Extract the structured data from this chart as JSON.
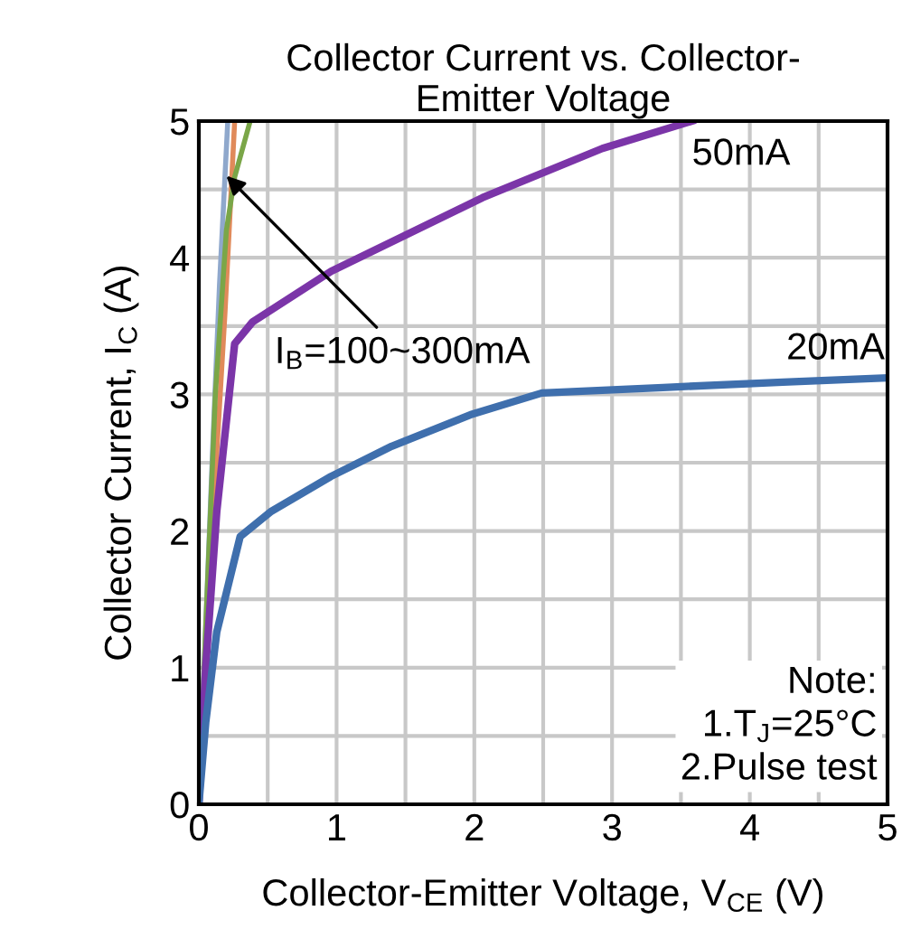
{
  "chart_data": {
    "type": "line",
    "title": "Collector Current vs. Collector-\nEmitter Voltage",
    "xlabel": "Collector-Emitter Voltage, V$_{CE}$ (V)",
    "ylabel": "Collector Current, I$_{C}$ (A)",
    "xlim": [
      0,
      5
    ],
    "ylim": [
      0,
      5
    ],
    "xticks": [
      0,
      {
        "value": 0.5,
        "label": null
      },
      1,
      {
        "value": 1.5,
        "label": null
      },
      2,
      {
        "value": 2.5,
        "label": null
      },
      3,
      {
        "value": 3.5,
        "label": null
      },
      4,
      {
        "value": 4.5,
        "label": null
      },
      5
    ],
    "yticks": [
      0,
      {
        "value": 0.5,
        "label": null
      },
      1,
      {
        "value": 1.5,
        "label": null
      },
      2,
      {
        "value": 2.5,
        "label": null
      },
      3,
      {
        "value": 3.5,
        "label": null
      },
      4,
      {
        "value": 4.5,
        "label": null
      },
      5
    ],
    "grid": true,
    "legend": false,
    "marker": "none",
    "line_style": "solid",
    "series": [
      {
        "color": "#8fa8cc",
        "x": [
          0,
          0.05,
          0.1,
          0.15,
          0.21
        ],
        "values": [
          0,
          1.3,
          2.6,
          3.8,
          5
        ]
      },
      {
        "color": "#e08a5a",
        "x": [
          0,
          0.06,
          0.12,
          0.19,
          0.26
        ],
        "values": [
          0,
          1.2,
          2.4,
          3.6,
          5
        ]
      },
      {
        "color": "#7aa648",
        "x": [
          0,
          0.05,
          0.12,
          0.2,
          0.26,
          0.37
        ],
        "values": [
          0,
          1.3,
          3.0,
          4.2,
          4.59,
          4.99
        ]
      },
      {
        "name": "50mA",
        "color": "#7b35a8",
        "x": [
          0,
          0.05,
          0.13,
          0.26,
          0.39,
          0.96,
          2.06,
          2.93,
          3.58
        ],
        "values": [
          0,
          1.0,
          2.14,
          3.37,
          3.53,
          3.9,
          4.44,
          4.8,
          5.0
        ]
      },
      {
        "name": "20mA",
        "color": "#3f6fad",
        "x": [
          0,
          0.05,
          0.13,
          0.3,
          0.52,
          0.96,
          1.4,
          1.97,
          2.49,
          3.37,
          4.24,
          4.99
        ],
        "values": [
          0,
          0.6,
          1.26,
          1.96,
          2.14,
          2.4,
          2.62,
          2.85,
          3.01,
          3.05,
          3.09,
          3.12
        ]
      }
    ],
    "annotations": [
      {
        "text": "I$_{B}$=100~300mA",
        "x": 0.2,
        "y": 4.6
      },
      "Note:\n1.T$_{J}$=25°C\n2.Pulse test"
    ]
  }
}
